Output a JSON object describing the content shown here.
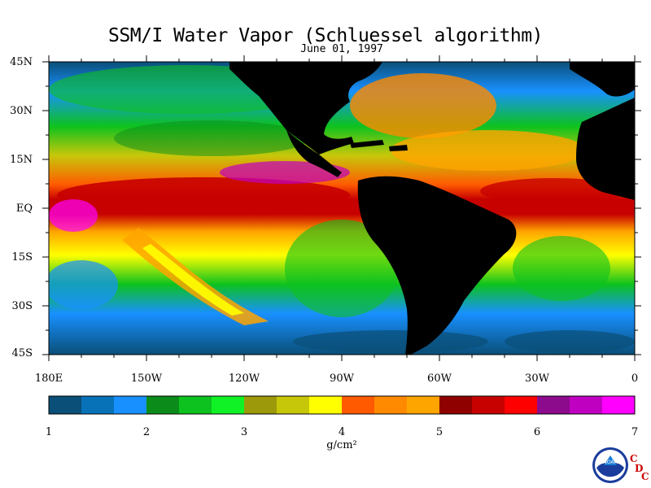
{
  "title": "SSM/I Water Vapor (Schluessel algorithm)",
  "subtitle": "June 01, 1997",
  "lat_labels": [
    "45N",
    "30N",
    "15N",
    "EQ",
    "15S",
    "30S",
    "45S"
  ],
  "lon_labels": [
    "180E",
    "150W",
    "120W",
    "90W",
    "60W",
    "30W",
    "0"
  ],
  "colorbar": {
    "labels": [
      "1",
      "2",
      "3",
      "4",
      "5",
      "6",
      "7"
    ],
    "units": "g/cm²",
    "colors": [
      "#0a4f78",
      "#0872b8",
      "#1890ff",
      "#0b8c1a",
      "#0dc21e",
      "#10f226",
      "#9c9a0a",
      "#c7c70a",
      "#ffff00",
      "#ff5a00",
      "#ff8a00",
      "#ffa500",
      "#8f0000",
      "#c70000",
      "#ff0000",
      "#8c0a8c",
      "#c000c0",
      "#ff00ff"
    ]
  },
  "logo": {
    "text": "NOAA",
    "cdc_letters": [
      "C",
      "D",
      "C"
    ]
  }
}
